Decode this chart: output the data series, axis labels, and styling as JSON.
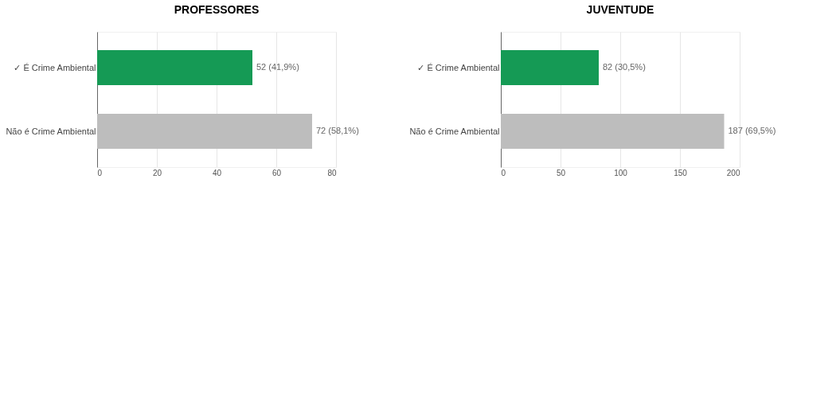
{
  "chart_data": [
    {
      "type": "bar",
      "orientation": "horizontal",
      "title": "PROFESSORES",
      "categories": [
        "✓ É Crime Ambiental",
        "Não é Crime Ambiental"
      ],
      "values": [
        52,
        72
      ],
      "colors": [
        "#159a55",
        "#bdbdbd"
      ],
      "value_labels": [
        "52 (41,9%)",
        "72 (58,1%)"
      ],
      "xlim": [
        0,
        80
      ],
      "xticks": [
        0,
        20,
        40,
        60,
        80
      ],
      "grid": "x"
    },
    {
      "type": "bar",
      "orientation": "horizontal",
      "title": "JUVENTUDE",
      "categories": [
        "✓ É Crime Ambiental",
        "Não é Crime Ambiental"
      ],
      "values": [
        82,
        187
      ],
      "colors": [
        "#159a55",
        "#bdbdbd"
      ],
      "value_labels": [
        "82 (30,5%)",
        "187 (69,5%)"
      ],
      "xlim": [
        0,
        200
      ],
      "xticks": [
        0,
        50,
        100,
        150,
        200
      ],
      "grid": "x"
    }
  ]
}
